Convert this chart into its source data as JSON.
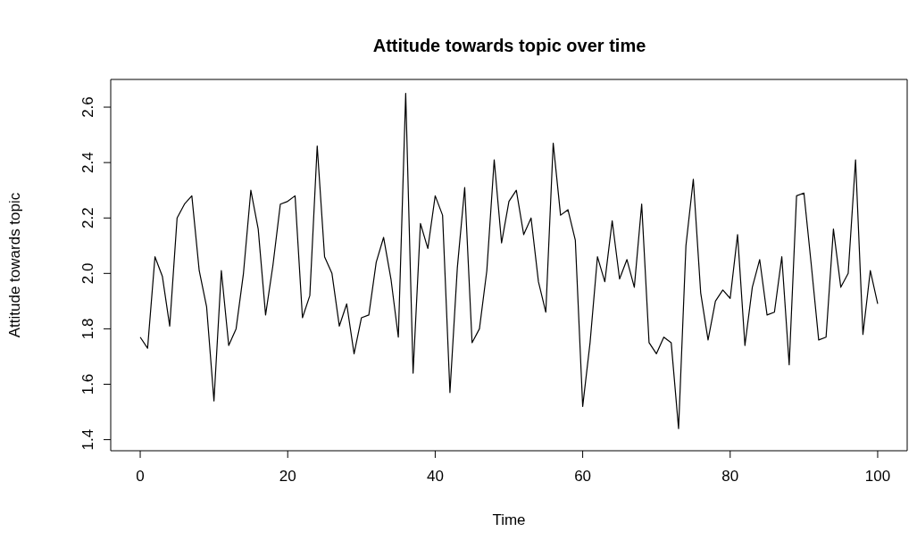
{
  "chart_data": {
    "type": "line",
    "title": "Attitude towards topic over time",
    "xlabel": "Time",
    "ylabel": "Attitude towards topic",
    "x": [
      0,
      1,
      2,
      3,
      4,
      5,
      6,
      7,
      8,
      9,
      10,
      11,
      12,
      13,
      14,
      15,
      16,
      17,
      18,
      19,
      20,
      21,
      22,
      23,
      24,
      25,
      26,
      27,
      28,
      29,
      30,
      31,
      32,
      33,
      34,
      35,
      36,
      37,
      38,
      39,
      40,
      41,
      42,
      43,
      44,
      45,
      46,
      47,
      48,
      49,
      50,
      51,
      52,
      53,
      54,
      55,
      56,
      57,
      58,
      59,
      60,
      61,
      62,
      63,
      64,
      65,
      66,
      67,
      68,
      69,
      70,
      71,
      72,
      73,
      74,
      75,
      76,
      77,
      78,
      79,
      80,
      81,
      82,
      83,
      84,
      85,
      86,
      87,
      88,
      89,
      90,
      91,
      92,
      93,
      94,
      95,
      96,
      97,
      98,
      99,
      100
    ],
    "values": [
      1.77,
      1.73,
      2.06,
      1.99,
      1.81,
      2.2,
      2.25,
      2.28,
      2.01,
      1.88,
      1.54,
      2.01,
      1.74,
      1.8,
      2.0,
      2.3,
      2.16,
      1.85,
      2.03,
      2.25,
      2.26,
      2.28,
      1.84,
      1.92,
      2.46,
      2.06,
      2.0,
      1.81,
      1.89,
      1.71,
      1.84,
      1.85,
      2.04,
      2.13,
      1.98,
      1.77,
      2.65,
      1.64,
      2.18,
      2.09,
      2.28,
      2.21,
      1.57,
      2.02,
      2.31,
      1.75,
      1.8,
      2.01,
      2.41,
      2.11,
      2.26,
      2.3,
      2.14,
      2.2,
      1.97,
      1.86,
      2.47,
      2.21,
      2.23,
      2.12,
      1.52,
      1.75,
      2.06,
      1.97,
      2.19,
      1.98,
      2.05,
      1.95,
      2.25,
      1.75,
      1.71,
      1.77,
      1.75,
      1.44,
      2.1,
      2.34,
      1.93,
      1.76,
      1.9,
      1.94,
      1.91,
      2.14,
      1.74,
      1.95,
      2.05,
      1.85,
      1.86,
      2.06,
      1.67,
      2.28,
      2.29,
      2.03,
      1.76,
      1.77,
      2.16,
      1.95,
      2.0,
      2.41,
      1.78,
      2.01,
      1.89
    ],
    "color": "#000000",
    "xlim": [
      -4,
      104
    ],
    "xticks": [
      0,
      20,
      40,
      60,
      80,
      100
    ],
    "ylim": [
      1.36,
      2.7
    ],
    "yticks": [
      {
        "value": 1.4,
        "label": "1.4"
      },
      {
        "value": 1.6,
        "label": "1.6"
      },
      {
        "value": 1.8,
        "label": "1.8"
      },
      {
        "value": 2.0,
        "label": "2.0"
      },
      {
        "value": 2.2,
        "label": "2.2"
      },
      {
        "value": 2.4,
        "label": "2.4"
      },
      {
        "value": 2.6,
        "label": "2.6"
      }
    ]
  }
}
